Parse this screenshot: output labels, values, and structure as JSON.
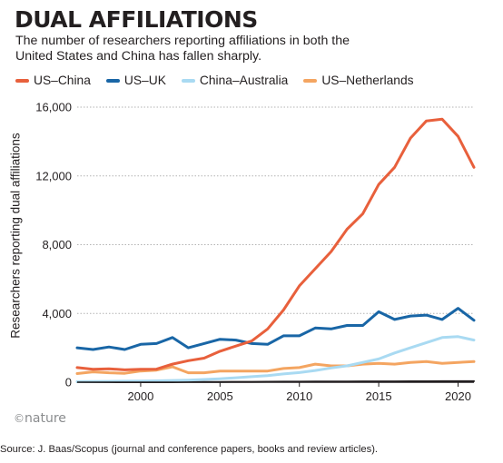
{
  "source": "Source: J. Baas/Scopus (journal and conference papers, books and review articles).",
  "credit": {
    "symbol": "©",
    "text": "nature"
  },
  "chart_data": {
    "type": "line",
    "title": "DUAL AFFILIATIONS",
    "subtitle": "The number of researchers reporting affiliations in both the United States and China has fallen sharply.",
    "xlabel": "",
    "ylabel": "Researchers reporting dual affiliations",
    "xlim": [
      1996,
      2021
    ],
    "ylim": [
      0,
      16000
    ],
    "x_ticks": [
      2000,
      2005,
      2010,
      2015,
      2020
    ],
    "x_tick_labels": [
      "2000",
      "2005",
      "2010",
      "2015",
      "2020"
    ],
    "y_ticks": [
      0,
      4000,
      8000,
      12000,
      16000
    ],
    "y_tick_labels": [
      "0",
      "4,000",
      "8,000",
      "12,000",
      "16,000"
    ],
    "grid": "horizontal",
    "legend_position": "top",
    "x": [
      1996,
      1997,
      1998,
      1999,
      2000,
      2001,
      2002,
      2003,
      2004,
      2005,
      2006,
      2007,
      2008,
      2009,
      2010,
      2011,
      2012,
      2013,
      2014,
      2015,
      2016,
      2017,
      2018,
      2019,
      2020,
      2021
    ],
    "series": [
      {
        "name": "US–China",
        "color": "#e8603c",
        "values": [
          850,
          750,
          780,
          720,
          750,
          760,
          1050,
          1250,
          1400,
          1800,
          2100,
          2400,
          3100,
          4200,
          5600,
          6600,
          7600,
          8900,
          9800,
          11500,
          12500,
          14200,
          15200,
          15300,
          14300,
          12500
        ]
      },
      {
        "name": "US–UK",
        "color": "#1966a6",
        "values": [
          2000,
          1900,
          2050,
          1900,
          2200,
          2250,
          2600,
          2000,
          2250,
          2500,
          2450,
          2250,
          2200,
          2700,
          2700,
          3150,
          3100,
          3300,
          3300,
          4100,
          3650,
          3850,
          3900,
          3650,
          4300,
          3600
        ]
      },
      {
        "name": "China–Australia",
        "color": "#a9daf2",
        "values": [
          30,
          40,
          50,
          60,
          70,
          80,
          100,
          120,
          160,
          200,
          260,
          320,
          380,
          480,
          560,
          680,
          830,
          950,
          1150,
          1350,
          1700,
          2000,
          2300,
          2600,
          2650,
          2450
        ]
      },
      {
        "name": "US–Netherlands",
        "color": "#f4a561",
        "values": [
          500,
          600,
          550,
          520,
          650,
          700,
          900,
          550,
          550,
          650,
          650,
          650,
          650,
          800,
          850,
          1050,
          950,
          950,
          1050,
          1100,
          1050,
          1150,
          1200,
          1100,
          1150,
          1200
        ]
      },
      {
        "name": "",
        "color": "#231f20",
        "values": [
          0,
          0,
          0,
          0,
          0,
          0,
          0,
          10,
          10,
          15,
          20,
          20,
          25,
          30,
          30,
          35,
          40,
          40,
          45,
          50,
          50,
          55,
          55,
          60,
          60,
          60
        ]
      }
    ]
  }
}
